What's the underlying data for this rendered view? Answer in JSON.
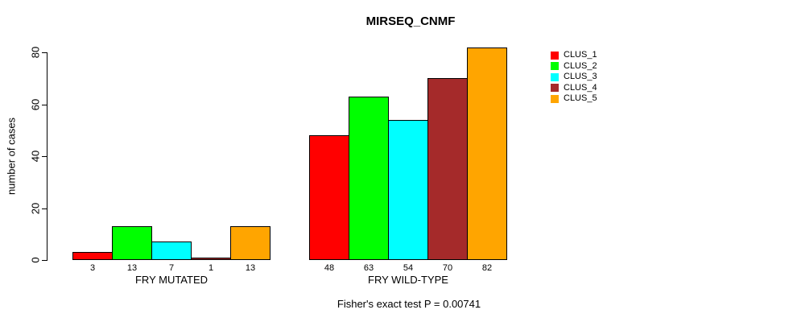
{
  "chart_data": {
    "type": "bar",
    "title": "MIRSEQ_CNMF",
    "ylabel": "number of cases",
    "xlabel": "",
    "categories": [
      "FRY MUTATED",
      "FRY WILD-TYPE"
    ],
    "series": [
      {
        "name": "CLUS_1",
        "color": "#FF0000",
        "values": [
          3,
          48
        ]
      },
      {
        "name": "CLUS_2",
        "color": "#00FF00",
        "values": [
          13,
          63
        ]
      },
      {
        "name": "CLUS_3",
        "color": "#00FFFF",
        "values": [
          7,
          54
        ]
      },
      {
        "name": "CLUS_4",
        "color": "#A52A2A",
        "values": [
          1,
          70
        ]
      },
      {
        "name": "CLUS_5",
        "color": "#FFA500",
        "values": [
          13,
          82
        ]
      }
    ],
    "yticks": [
      0,
      20,
      40,
      60,
      80
    ],
    "ylim": [
      0,
      82
    ],
    "grid": false,
    "legend_position": "right",
    "bar_value_labels": true,
    "bar_border_color": "#000000",
    "annotation": "Fisher's exact test P = 0.00741"
  }
}
